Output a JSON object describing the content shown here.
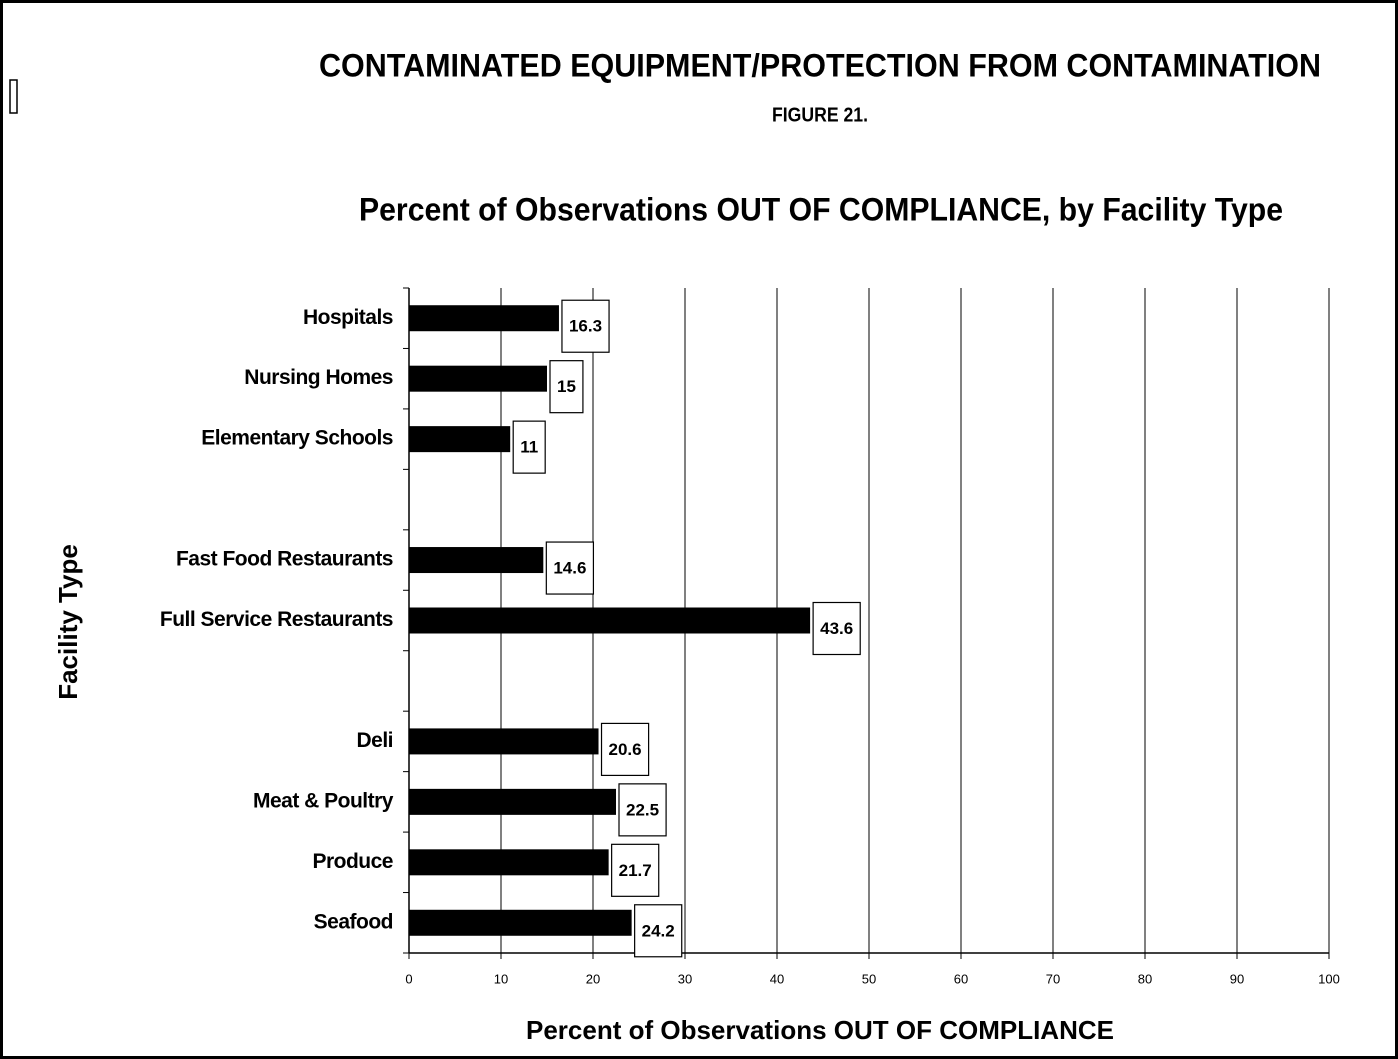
{
  "chart_data": {
    "type": "barh",
    "title": "CONTAMINATED EQUIPMENT/PROTECTION FROM CONTAMINATION",
    "subtitle": "FIGURE 21.",
    "chart_title": "Percent of Observations OUT OF COMPLIANCE, by Facility Type",
    "x_label": "Percent of Observations OUT OF COMPLIANCE",
    "y_label": "Facility Type",
    "categories": [
      "Hospitals",
      "Nursing Homes",
      "Elementary Schools",
      null,
      "Fast Food Restaurants",
      "Full Service Restaurants",
      null,
      "Deli",
      "Meat & Poultry",
      "Produce",
      "Seafood"
    ],
    "values": [
      16.3,
      15,
      11,
      null,
      14.6,
      43.6,
      null,
      20.6,
      22.5,
      21.7,
      24.2
    ],
    "color": "#000000",
    "xlim": [
      0,
      100
    ],
    "xticks": [
      0,
      10,
      20,
      30,
      40,
      50,
      60,
      70,
      80,
      90,
      100
    ],
    "grid": true
  }
}
